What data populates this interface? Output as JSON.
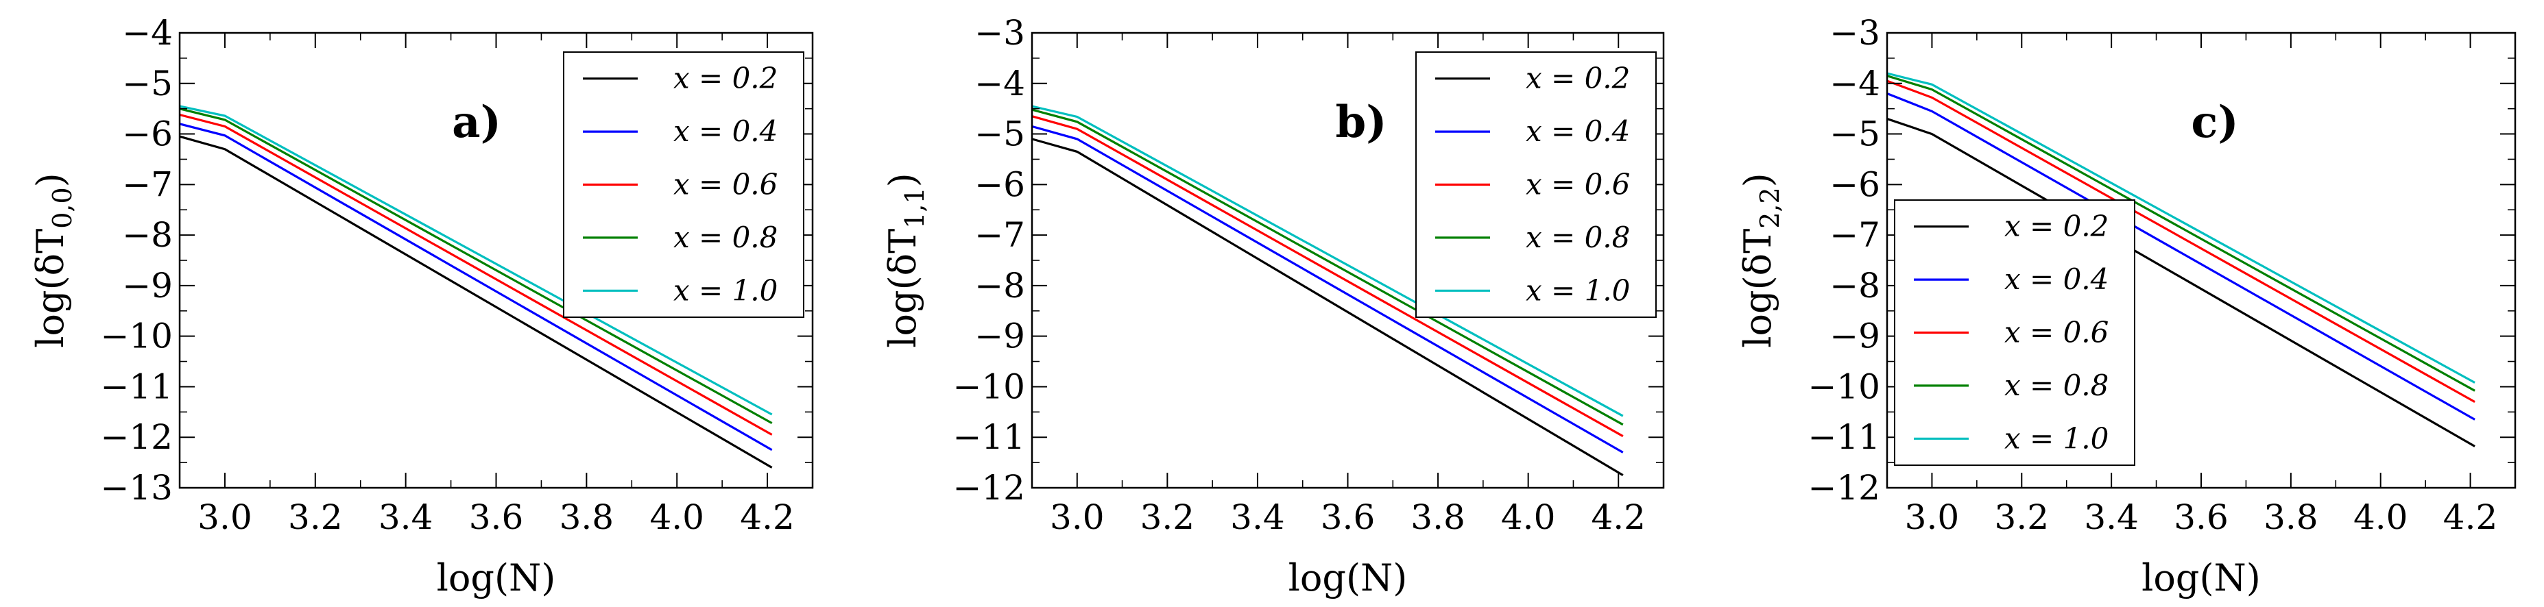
{
  "figure": {
    "panels": 3
  },
  "chart_data": [
    {
      "type": "line",
      "panel_label": "a)",
      "xlabel": "log(N)",
      "ylabel": "log(δT0,0)",
      "ylabel_base": "log(δT",
      "ylabel_sub": "0,0",
      "ylabel_close": ")",
      "xlim": [
        2.9,
        4.3
      ],
      "ylim": [
        -13,
        -4
      ],
      "xticks": [
        3.0,
        3.2,
        3.4,
        3.6,
        3.8,
        4.0,
        4.2
      ],
      "xtick_labels": [
        "3.0",
        "3.2",
        "3.4",
        "3.6",
        "3.8",
        "4.0",
        "4.2"
      ],
      "yticks": [
        -13,
        -12,
        -11,
        -10,
        -9,
        -8,
        -7,
        -6,
        -5,
        -4
      ],
      "ytick_labels": [
        "−13",
        "−12",
        "−11",
        "−10",
        "−9",
        "−8",
        "−7",
        "−6",
        "−5",
        "−4"
      ],
      "legend_position": "top-right",
      "series": [
        {
          "name": "x = 0.2",
          "color": "#000000",
          "x": [
            2.9,
            3.0,
            4.21
          ],
          "y": [
            -6.05,
            -6.3,
            -12.6
          ]
        },
        {
          "name": "x = 0.4",
          "color": "#0000ff",
          "x": [
            2.9,
            3.0,
            4.21
          ],
          "y": [
            -5.8,
            -6.03,
            -12.25
          ]
        },
        {
          "name": "x = 0.6",
          "color": "#ff0000",
          "x": [
            2.9,
            3.0,
            4.21
          ],
          "y": [
            -5.62,
            -5.85,
            -11.95
          ]
        },
        {
          "name": "x = 0.8",
          "color": "#008000",
          "x": [
            2.9,
            3.0,
            4.21
          ],
          "y": [
            -5.5,
            -5.72,
            -11.72
          ]
        },
        {
          "name": "x = 1.0",
          "color": "#00bfbf",
          "x": [
            2.9,
            3.0,
            4.21
          ],
          "y": [
            -5.45,
            -5.64,
            -11.55
          ]
        }
      ]
    },
    {
      "type": "line",
      "panel_label": "b)",
      "xlabel": "log(N)",
      "ylabel": "log(δT1,1)",
      "ylabel_base": "log(δT",
      "ylabel_sub": "1,1",
      "ylabel_close": ")",
      "xlim": [
        2.9,
        4.3
      ],
      "ylim": [
        -12,
        -3
      ],
      "xticks": [
        3.0,
        3.2,
        3.4,
        3.6,
        3.8,
        4.0,
        4.2
      ],
      "xtick_labels": [
        "3.0",
        "3.2",
        "3.4",
        "3.6",
        "3.8",
        "4.0",
        "4.2"
      ],
      "yticks": [
        -12,
        -11,
        -10,
        -9,
        -8,
        -7,
        -6,
        -5,
        -4,
        -3
      ],
      "ytick_labels": [
        "−12",
        "−11",
        "−10",
        "−9",
        "−8",
        "−7",
        "−6",
        "−5",
        "−4",
        "−3"
      ],
      "legend_position": "top-right",
      "series": [
        {
          "name": "x = 0.2",
          "color": "#000000",
          "x": [
            2.9,
            3.0,
            4.21
          ],
          "y": [
            -5.1,
            -5.35,
            -11.75
          ]
        },
        {
          "name": "x = 0.4",
          "color": "#0000ff",
          "x": [
            2.9,
            3.0,
            4.21
          ],
          "y": [
            -4.85,
            -5.1,
            -11.3
          ]
        },
        {
          "name": "x = 0.6",
          "color": "#ff0000",
          "x": [
            2.9,
            3.0,
            4.21
          ],
          "y": [
            -4.65,
            -4.9,
            -10.98
          ]
        },
        {
          "name": "x = 0.8",
          "color": "#008000",
          "x": [
            2.9,
            3.0,
            4.21
          ],
          "y": [
            -4.52,
            -4.76,
            -10.75
          ]
        },
        {
          "name": "x = 1.0",
          "color": "#00bfbf",
          "x": [
            2.9,
            3.0,
            4.21
          ],
          "y": [
            -4.45,
            -4.66,
            -10.58
          ]
        }
      ]
    },
    {
      "type": "line",
      "panel_label": "c)",
      "xlabel": "log(N)",
      "ylabel": "log(δT2,2)",
      "ylabel_base": "log(δT",
      "ylabel_sub": "2,2",
      "ylabel_close": ")",
      "xlim": [
        2.9,
        4.3
      ],
      "ylim": [
        -12,
        -3
      ],
      "xticks": [
        3.0,
        3.2,
        3.4,
        3.6,
        3.8,
        4.0,
        4.2
      ],
      "xtick_labels": [
        "3.0",
        "3.2",
        "3.4",
        "3.6",
        "3.8",
        "4.0",
        "4.2"
      ],
      "yticks": [
        -12,
        -11,
        -10,
        -9,
        -8,
        -7,
        -6,
        -5,
        -4,
        -3
      ],
      "ytick_labels": [
        "−12",
        "−11",
        "−10",
        "−9",
        "−8",
        "−7",
        "−6",
        "−5",
        "−4",
        "−3"
      ],
      "legend_position": "lower-left",
      "series": [
        {
          "name": "x = 0.2",
          "color": "#000000",
          "x": [
            2.9,
            3.0,
            4.21
          ],
          "y": [
            -4.7,
            -5.0,
            -11.18
          ]
        },
        {
          "name": "x = 0.4",
          "color": "#0000ff",
          "x": [
            2.9,
            3.0,
            4.21
          ],
          "y": [
            -4.2,
            -4.55,
            -10.65
          ]
        },
        {
          "name": "x = 0.6",
          "color": "#ff0000",
          "x": [
            2.9,
            3.0,
            4.21
          ],
          "y": [
            -3.95,
            -4.28,
            -10.3
          ]
        },
        {
          "name": "x = 0.8",
          "color": "#008000",
          "x": [
            2.9,
            3.0,
            4.21
          ],
          "y": [
            -3.85,
            -4.12,
            -10.08
          ]
        },
        {
          "name": "x = 1.0",
          "color": "#00bfbf",
          "x": [
            2.9,
            3.0,
            4.21
          ],
          "y": [
            -3.8,
            -4.02,
            -9.92
          ]
        }
      ]
    }
  ]
}
